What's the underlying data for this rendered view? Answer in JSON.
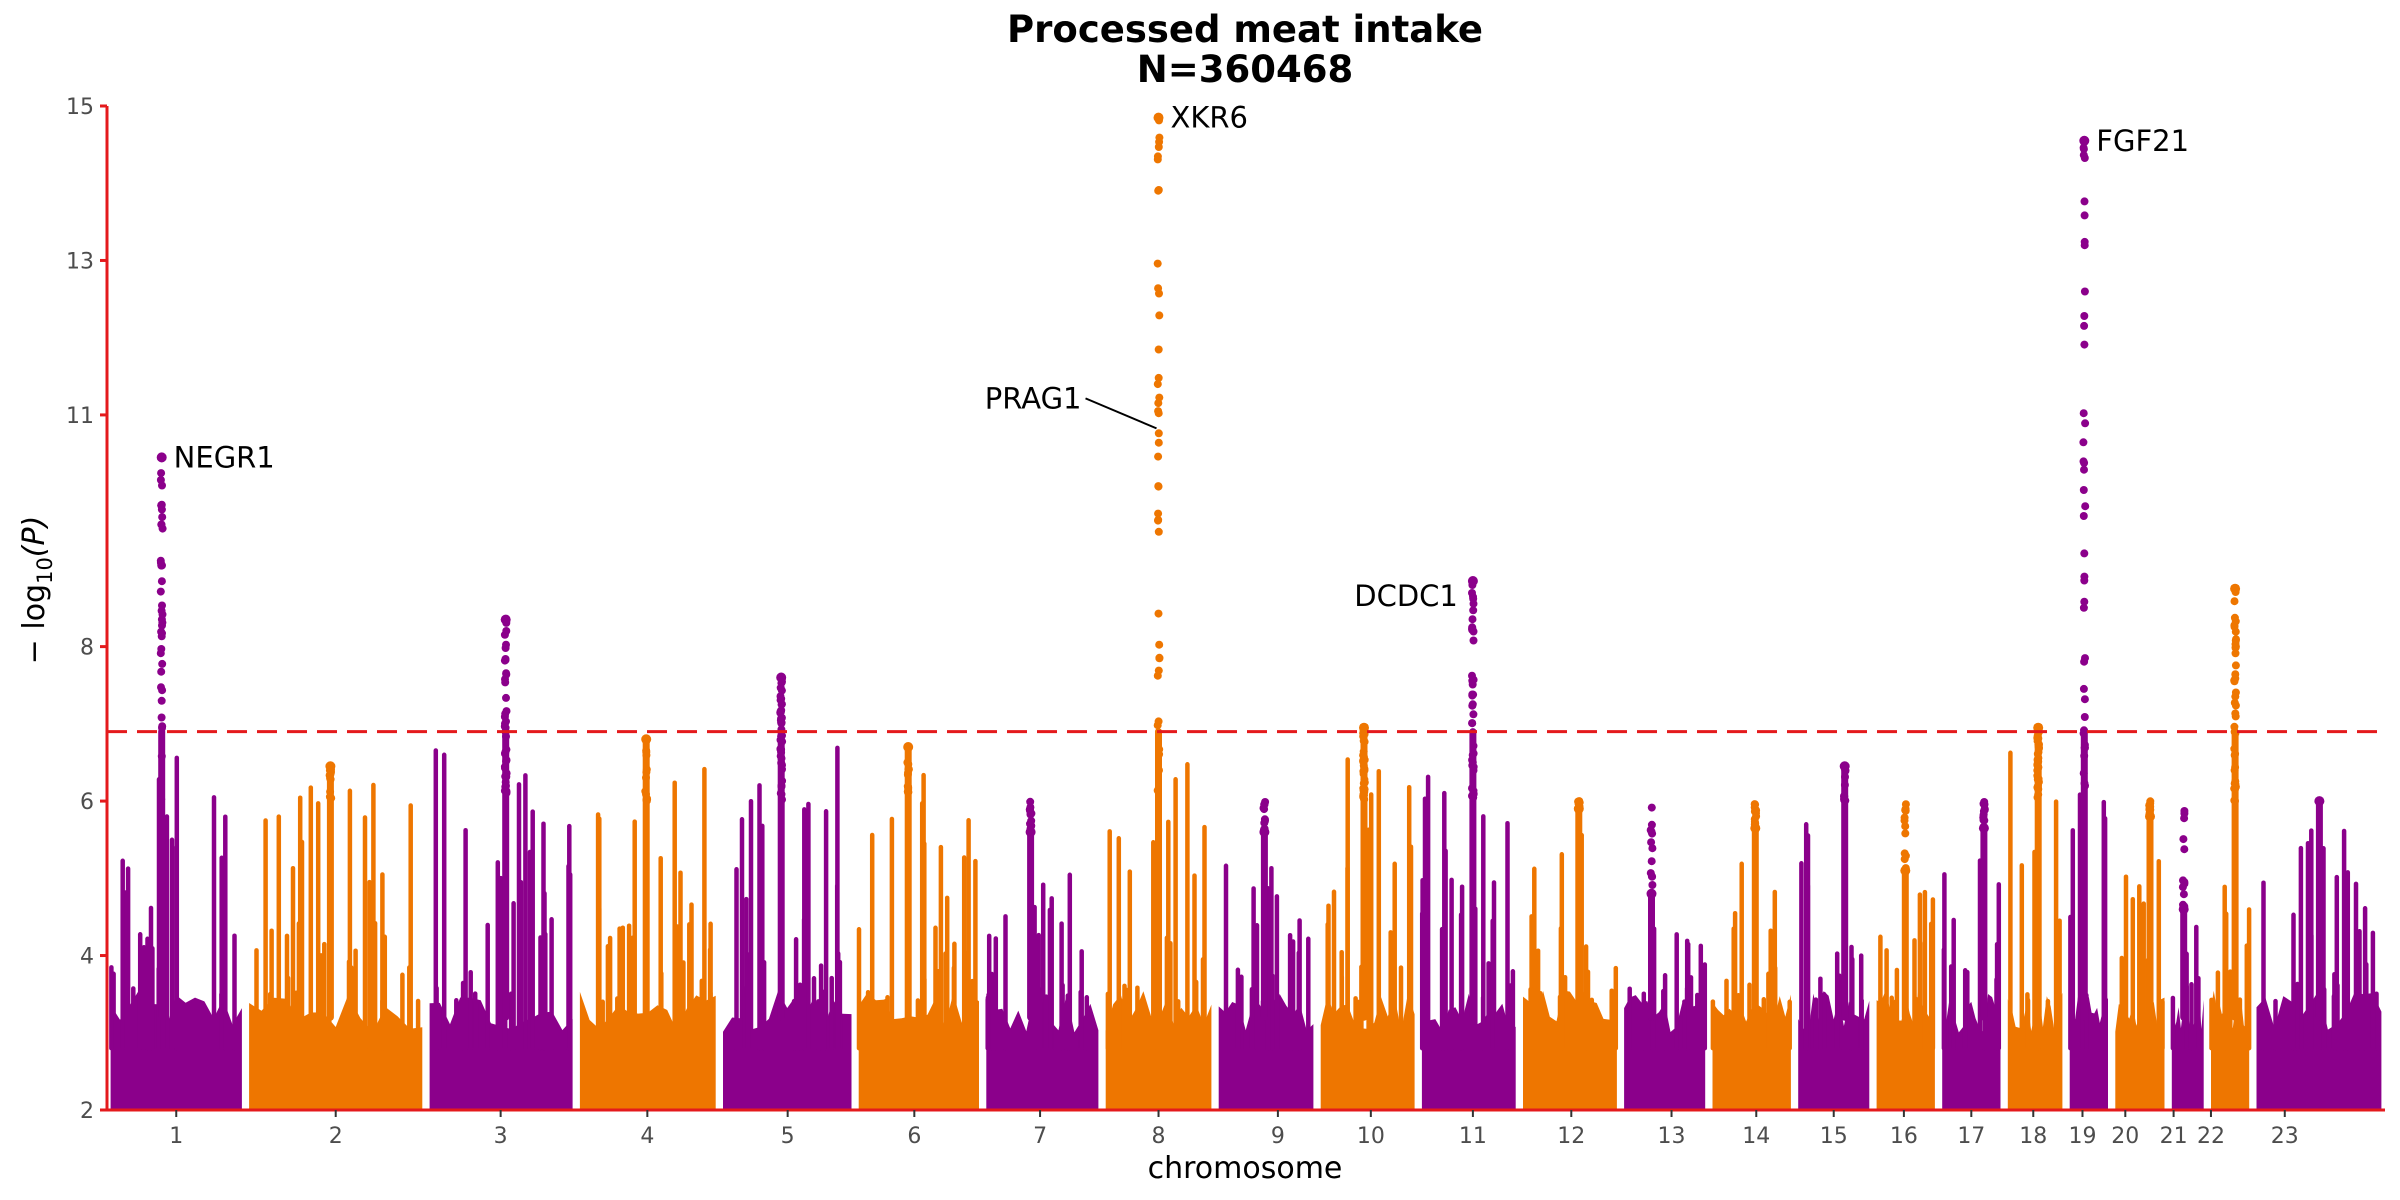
{
  "chart_data": {
    "type": "scatter",
    "subtype": "manhattan",
    "title": "Processed meat intake",
    "subtitle": "N=360468",
    "xlabel": "chromosome",
    "ylabel_prefix": "− log",
    "ylabel_sub": "10",
    "ylabel_suffix": "(P)",
    "ylim": [
      2,
      15
    ],
    "yticks": [
      2,
      4,
      6,
      8,
      11,
      13,
      15
    ],
    "significance_threshold": 6.9,
    "grid": false,
    "colors": {
      "odd": "#8B008B",
      "even": "#EE7600",
      "threshold": "#E41A1C",
      "axis": "#E41A1C"
    },
    "chromosomes": [
      {
        "label": "1",
        "start": 0,
        "end": 1.52,
        "color": "odd",
        "peak": 10.45,
        "tickpos": 0.76
      },
      {
        "label": "2",
        "start": 1.52,
        "end": 3.5,
        "color": "even",
        "peak": 6.45,
        "tickpos": 2.51
      },
      {
        "label": "3",
        "start": 3.5,
        "end": 5.15,
        "color": "odd",
        "peak": 8.35,
        "tickpos": 4.32
      },
      {
        "label": "4",
        "start": 5.15,
        "end": 6.72,
        "color": "even",
        "peak": 6.8,
        "tickpos": 5.93
      },
      {
        "label": "5",
        "start": 6.72,
        "end": 8.21,
        "color": "odd",
        "peak": 7.6,
        "tickpos": 7.47
      },
      {
        "label": "6",
        "start": 8.21,
        "end": 9.61,
        "color": "even",
        "peak": 6.7,
        "tickpos": 8.86
      },
      {
        "label": "7",
        "start": 9.61,
        "end": 10.92,
        "color": "odd",
        "peak": 5.6,
        "tickpos": 10.24
      },
      {
        "label": "8",
        "start": 10.92,
        "end": 12.16,
        "color": "even",
        "peak": 14.85,
        "tickpos": 11.54
      },
      {
        "label": "9",
        "start": 12.16,
        "end": 13.28,
        "color": "odd",
        "peak": 5.6,
        "tickpos": 12.85
      },
      {
        "label": "10",
        "start": 13.28,
        "end": 14.39,
        "color": "even",
        "peak": 6.95,
        "tickpos": 13.87
      },
      {
        "label": "11",
        "start": 14.39,
        "end": 15.5,
        "color": "odd",
        "peak": 8.85,
        "tickpos": 14.99
      },
      {
        "label": "12",
        "start": 15.5,
        "end": 16.61,
        "color": "even",
        "peak": 5.9,
        "tickpos": 16.07
      },
      {
        "label": "13",
        "start": 16.61,
        "end": 17.58,
        "color": "odd",
        "peak": 4.8,
        "tickpos": 17.17
      },
      {
        "label": "14",
        "start": 17.58,
        "end": 18.52,
        "color": "even",
        "peak": 5.65,
        "tickpos": 18.1
      },
      {
        "label": "15",
        "start": 18.52,
        "end": 19.38,
        "color": "odd",
        "peak": 6.45,
        "tickpos": 18.95
      },
      {
        "label": "16",
        "start": 19.38,
        "end": 20.1,
        "color": "even",
        "peak": 5.1,
        "tickpos": 19.72
      },
      {
        "label": "17",
        "start": 20.1,
        "end": 20.82,
        "color": "odd",
        "peak": 5.65,
        "tickpos": 20.46
      },
      {
        "label": "18",
        "start": 20.82,
        "end": 21.5,
        "color": "even",
        "peak": 6.95,
        "tickpos": 21.14
      },
      {
        "label": "19",
        "start": 21.5,
        "end": 22.0,
        "color": "odd",
        "peak": 14.55,
        "tickpos": 21.68
      },
      {
        "label": "20",
        "start": 22.0,
        "end": 22.62,
        "color": "even",
        "peak": 5.8,
        "tickpos": 22.15
      },
      {
        "label": "21",
        "start": 22.62,
        "end": 23.05,
        "color": "odd",
        "peak": 4.6,
        "tickpos": 22.68
      },
      {
        "label": "22",
        "start": 23.05,
        "end": 23.55,
        "color": "even",
        "peak": 8.75,
        "tickpos": 23.09
      },
      {
        "label": "23",
        "start": 23.55,
        "end": 25.0,
        "color": "odd",
        "peak": 6.0,
        "tickpos": 23.9
      }
    ],
    "hits": [
      {
        "gene": "NEGR1",
        "chrom": "1",
        "x": 0.6,
        "y": 10.45,
        "label_side": "right"
      },
      {
        "gene": "PRAG1",
        "chrom": "8",
        "x": 11.54,
        "y": 10.8,
        "label_side": "left-leader"
      },
      {
        "gene": "XKR6",
        "chrom": "8",
        "x": 11.54,
        "y": 14.85,
        "label_side": "right"
      },
      {
        "gene": "DCDC1",
        "chrom": "11",
        "x": 14.99,
        "y": 8.85,
        "label_side": "left-above"
      },
      {
        "gene": "FGF21",
        "chrom": "19",
        "x": 21.7,
        "y": 14.55,
        "label_side": "right"
      }
    ]
  }
}
